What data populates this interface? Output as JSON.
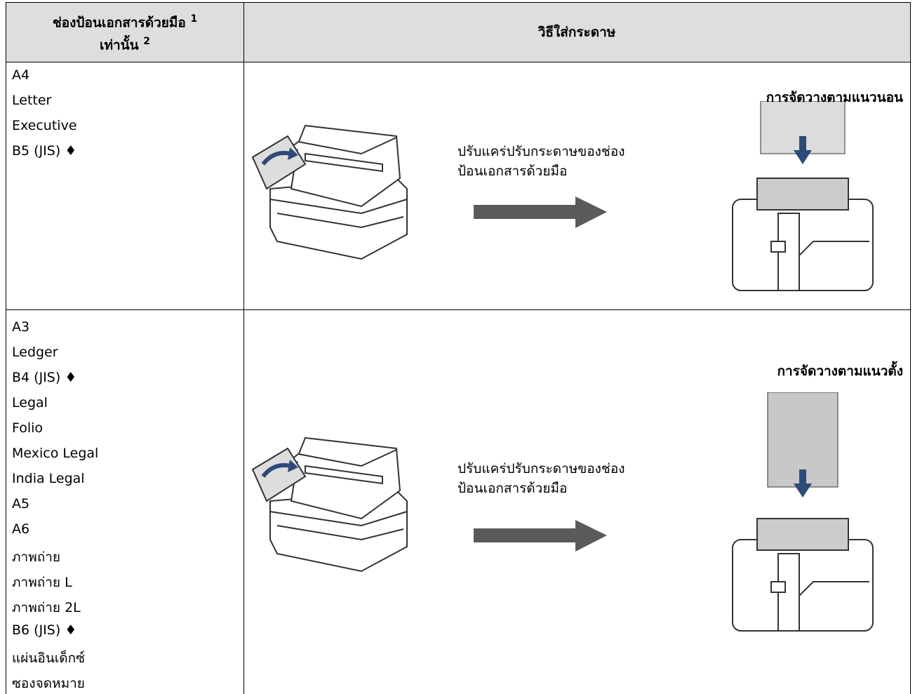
{
  "header": {
    "col1": {
      "line1": "ช่องป้อนเอกสารด้วยมือ",
      "note1": "1",
      "line2": "เท่านั้น",
      "note2": "2"
    },
    "col2": "วิธีใส่กระดาษ"
  },
  "rows": [
    {
      "sizes": [
        "A4",
        "Letter",
        "Executive",
        "B5 (JIS) ♦"
      ],
      "instruction": [
        "ปรับแคร่ปรับกระดาษของช่อง",
        "ป้อนเอกสารด้วยมือ"
      ],
      "orientation": "การจัดวางตามแนวนอน"
    },
    {
      "sizes": [
        "A3",
        "Ledger",
        "B4 (JIS) ♦",
        "Legal",
        "Folio",
        "Mexico Legal",
        "India Legal",
        "A5",
        "A6",
        "ภาพถ่าย",
        "ภาพถ่าย L",
        "ภาพถ่าย 2L",
        "B6 (JIS) ♦",
        "แผ่นอินเด็กซ์",
        "ซองจดหมาย"
      ],
      "instruction": [
        "ปรับแคร่ปรับกระดาษของช่อง",
        "ป้อนเอกสารด้วยมือ"
      ],
      "orientation": "การจัดวางตามแนวตั้ง"
    }
  ]
}
